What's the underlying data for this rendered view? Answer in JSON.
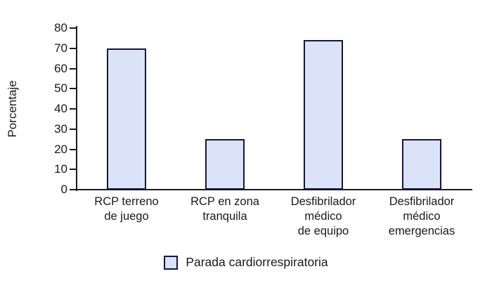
{
  "chart_data": {
    "type": "bar",
    "categories": [
      "RCP terreno de juego",
      "RCP en zona tranquila",
      "Desfibrilador médico de equipo",
      "Desfibrilador médico emergencias"
    ],
    "category_lines": [
      [
        "RCP terreno",
        "de juego"
      ],
      [
        "RCP en zona",
        "tranquila"
      ],
      [
        "Desfibrilador",
        "médico",
        "de equipo"
      ],
      [
        "Desfibrilador",
        "médico",
        "emergencias"
      ]
    ],
    "values": [
      70,
      25,
      74,
      25
    ],
    "series_name": "Parada cardiorrespiratoria",
    "title": "",
    "xlabel": "",
    "ylabel": "Porcentaje",
    "ylim": [
      0,
      80
    ],
    "ytick_step": 10,
    "ytick_labels": [
      "0",
      "10",
      "20",
      "30",
      "40",
      "50",
      "60",
      "70",
      "80"
    ],
    "grid": false,
    "legend_position": "bottom",
    "colors": {
      "bar_fill": "#dbe3f8",
      "bar_border": "#16163d",
      "axis": "#1a1a1a",
      "text": "#1a1a1a"
    }
  },
  "legend": {
    "label": "Parada cardiorrespiratoria"
  }
}
